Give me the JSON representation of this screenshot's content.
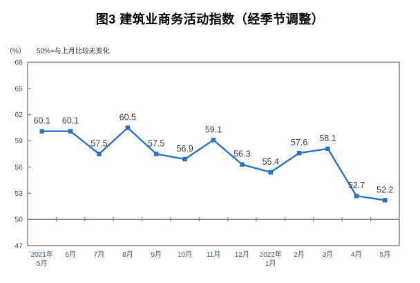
{
  "title": "图3  建筑业商务活动指数（经季节调整）",
  "subtitle": {
    "unit": "（%）",
    "note": "50%=与上月比较无变化"
  },
  "chart_data": {
    "type": "line",
    "categories": [
      "2021年\n5月",
      "6月",
      "7月",
      "8月",
      "9月",
      "10月",
      "11月",
      "12月",
      "2022年\n1月",
      "2月",
      "3月",
      "4月",
      "5月"
    ],
    "series": [
      {
        "name": "建筑业商务活动指数",
        "values": [
          60.1,
          60.1,
          57.5,
          60.5,
          57.5,
          56.9,
          59.1,
          56.3,
          55.4,
          57.6,
          58.1,
          52.7,
          52.2
        ]
      }
    ],
    "title": "图3  建筑业商务活动指数（经季节调整）",
    "xlabel": "",
    "ylabel": "（%）",
    "ylim": [
      47,
      68
    ],
    "yticks": [
      47,
      50,
      53,
      56,
      59,
      62,
      65,
      68
    ],
    "reference_line": 50,
    "grid": false,
    "legend_position": "none",
    "marker": "square",
    "data_labels": true,
    "colors": {
      "line": "#2B6FC8",
      "marker": "#2B6FC8",
      "data_label": "#404040",
      "axis_border": "#808080",
      "reference_line": "#808080",
      "tick_label": "#44546A",
      "title": "#000000",
      "subtitle": "#333333"
    }
  }
}
